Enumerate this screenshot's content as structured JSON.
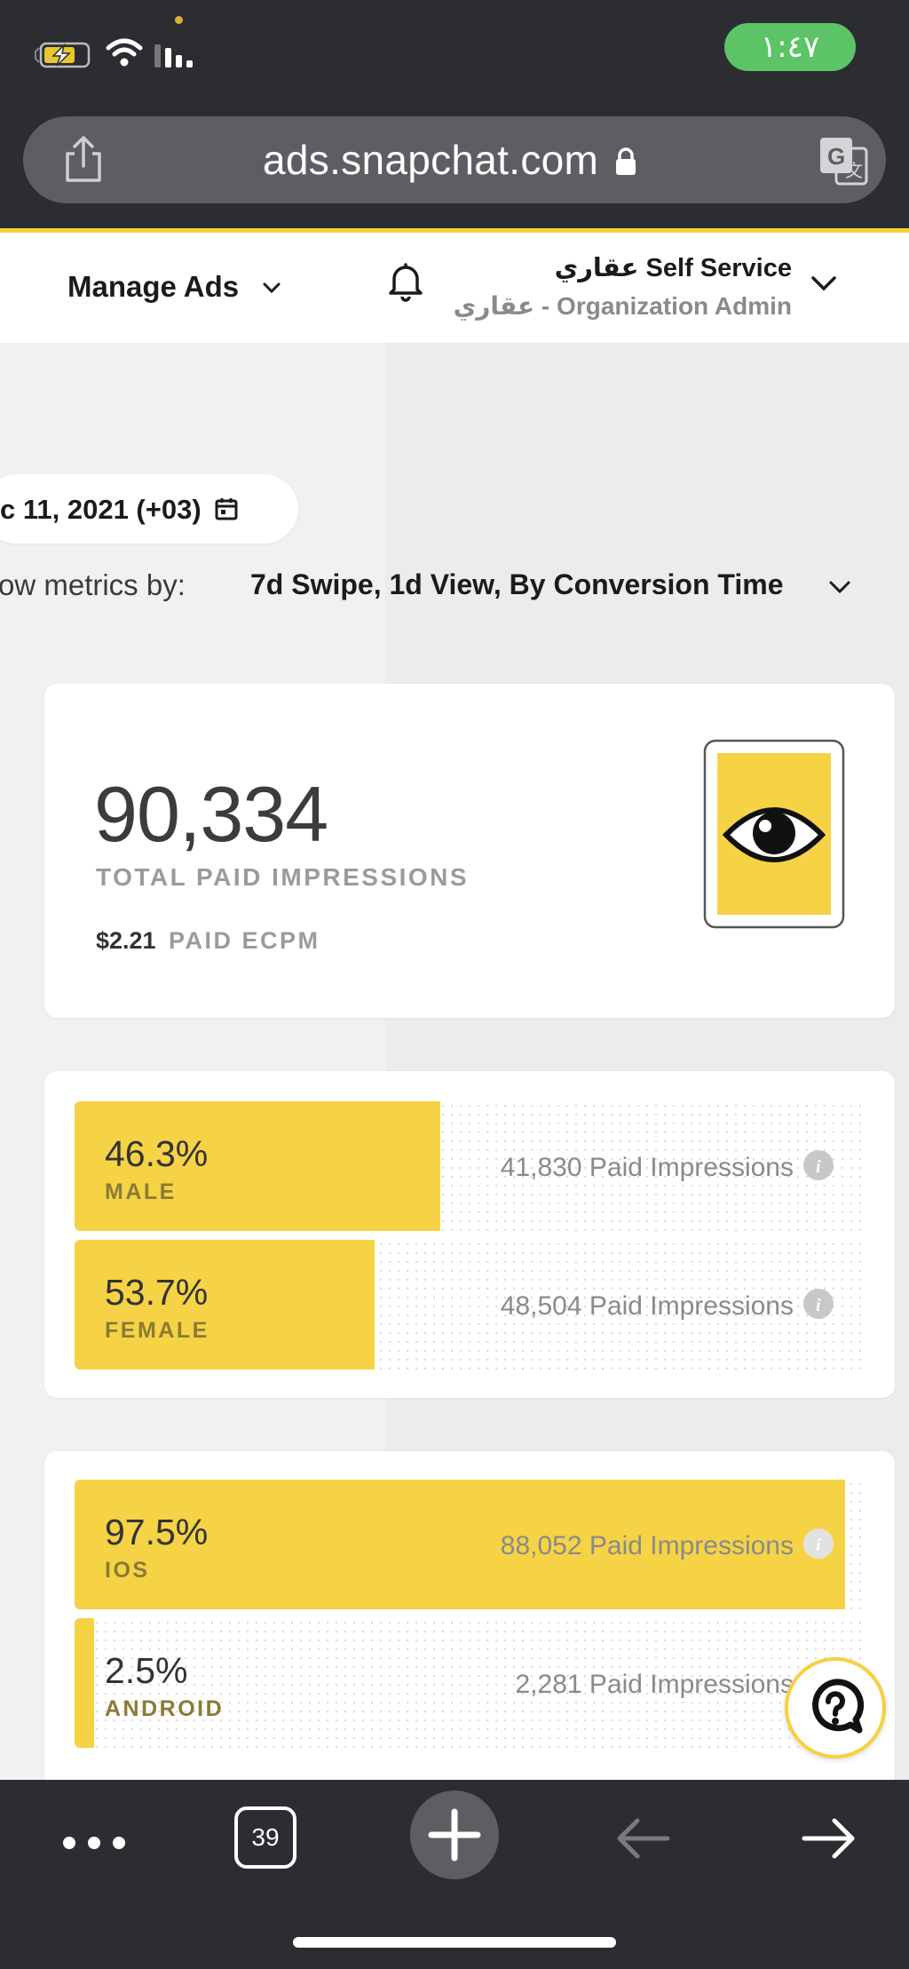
{
  "status_bar": {
    "time": "١:٤٧"
  },
  "browser": {
    "url": "ads.snapchat.com",
    "tab_count": "39"
  },
  "header": {
    "manage_ads": "Manage Ads",
    "account_name": "عقاري Self Service",
    "account_role": "عقاري - Organization Admin"
  },
  "filters": {
    "date_range": "c 11, 2021 (+03)",
    "metrics_label": "ow metrics by:",
    "metrics_value": "7d Swipe, 1d View, By Conversion Time"
  },
  "summary": {
    "total_impressions": "90,334",
    "total_label": "TOTAL PAID IMPRESSIONS",
    "ecpm_value": "$2.21",
    "ecpm_label": "PAID ECPM"
  },
  "gender": [
    {
      "pct": "46.3%",
      "name": "MALE",
      "count": "41,830 Paid Impressions",
      "share": 46.3
    },
    {
      "pct": "53.7%",
      "name": "FEMALE",
      "count": "48,504 Paid Impressions",
      "share": 53.7
    }
  ],
  "platform": [
    {
      "pct": "97.5%",
      "name": "IOS",
      "count": "88,052 Paid Impressions",
      "share": 97.5
    },
    {
      "pct": "2.5%",
      "name": "ANDROID",
      "count": "2,281 Paid Impressions",
      "share": 2.5
    }
  ],
  "colors": {
    "brand_yellow": "#f5d344",
    "browser_chrome": "#2c2d30",
    "time_pill": "#5cc466"
  }
}
